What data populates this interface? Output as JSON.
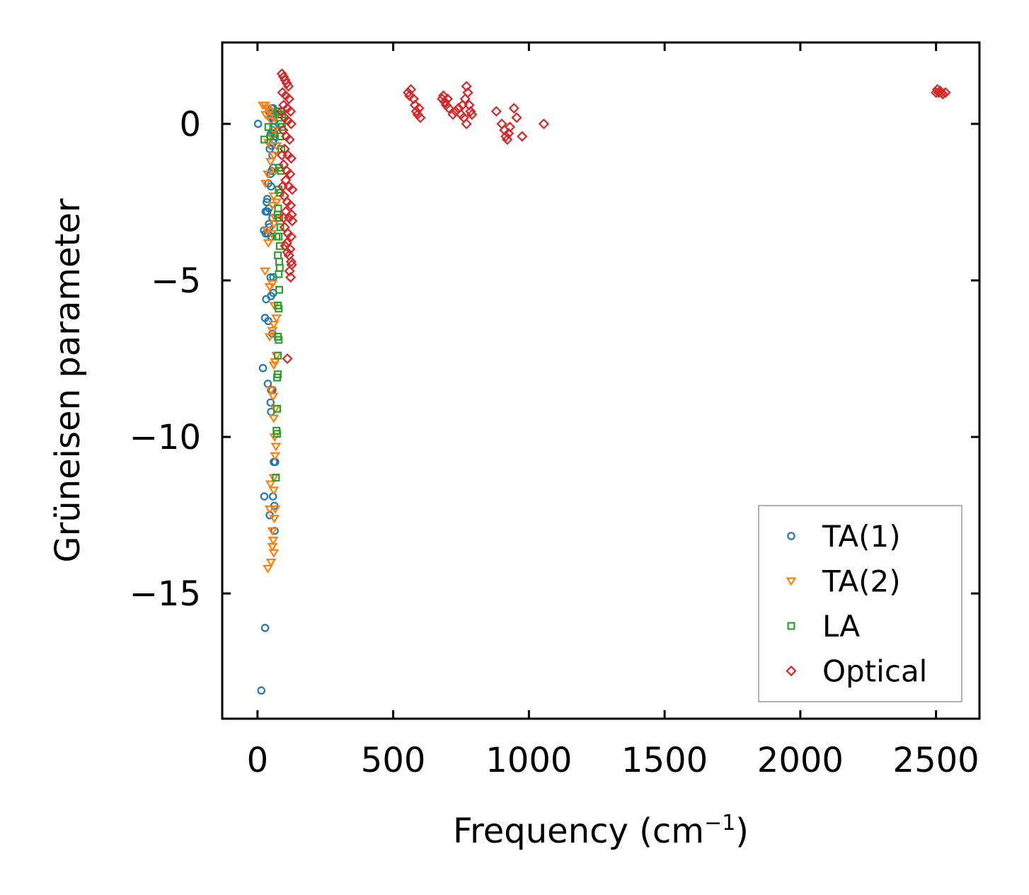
{
  "chart_data": {
    "type": "scatter",
    "title": "",
    "xlabel": "Frequency (cm",
    "xlabel_superscript": "−1",
    "xlabel_suffix": ")",
    "ylabel": "Grüneisen parameter",
    "xlim": [
      -130,
      2660
    ],
    "ylim": [
      -19.0,
      2.6
    ],
    "xticks": [
      0,
      500,
      1000,
      1500,
      2000,
      2500
    ],
    "xtick_labels": [
      "0",
      "500",
      "1000",
      "1500",
      "2000",
      "2500"
    ],
    "yticks": [
      0,
      -5,
      -10,
      -15
    ],
    "ytick_labels": [
      "0",
      "−5",
      "−10",
      "−15"
    ],
    "grid": false,
    "legend_position": "lower-right",
    "series": [
      {
        "name": "TA(1)",
        "marker": "circle",
        "color": "#1f77b4",
        "points": [
          [
            14,
            -18.1
          ],
          [
            28,
            -16.1
          ],
          [
            25,
            -11.9
          ],
          [
            45,
            -12.5
          ],
          [
            57,
            -11.9
          ],
          [
            62,
            -12.2
          ],
          [
            63,
            -13.0
          ],
          [
            60,
            -10.8
          ],
          [
            65,
            -10.8
          ],
          [
            20,
            -7.8
          ],
          [
            38,
            -8.3
          ],
          [
            50,
            -8.5
          ],
          [
            55,
            -8.5
          ],
          [
            48,
            -8.9
          ],
          [
            50,
            -9.2
          ],
          [
            28,
            -6.2
          ],
          [
            40,
            -6.3
          ],
          [
            55,
            -6.7
          ],
          [
            58,
            -5.4
          ],
          [
            32,
            -5.6
          ],
          [
            50,
            -5.5
          ],
          [
            48,
            -4.9
          ],
          [
            58,
            -4.9
          ],
          [
            24,
            -3.4
          ],
          [
            30,
            -3.5
          ],
          [
            38,
            -3.5
          ],
          [
            44,
            -3.3
          ],
          [
            50,
            -3.6
          ],
          [
            55,
            -3.0
          ],
          [
            30,
            -2.8
          ],
          [
            36,
            -2.8
          ],
          [
            42,
            -3.2
          ],
          [
            34,
            -2.5
          ],
          [
            42,
            -2.7
          ],
          [
            36,
            -2.4
          ],
          [
            40,
            -1.9
          ],
          [
            50,
            -2.0
          ],
          [
            48,
            -1.6
          ],
          [
            52,
            -1.5
          ],
          [
            58,
            -1.4
          ],
          [
            55,
            -1.0
          ],
          [
            45,
            -0.8
          ],
          [
            52,
            -0.7
          ],
          [
            58,
            -0.6
          ],
          [
            46,
            -0.4
          ],
          [
            50,
            -0.3
          ],
          [
            54,
            -0.3
          ],
          [
            56,
            -0.2
          ],
          [
            60,
            -0.5
          ],
          [
            62,
            -0.3
          ],
          [
            64,
            -0.4
          ],
          [
            58,
            -0.1
          ],
          [
            48,
            0.2
          ],
          [
            55,
            0.2
          ],
          [
            60,
            0.1
          ],
          [
            42,
            0.4
          ],
          [
            50,
            0.4
          ],
          [
            60,
            0.3
          ],
          [
            52,
            0.5
          ],
          [
            58,
            0.5
          ],
          [
            2,
            0.0
          ]
        ]
      },
      {
        "name": "TA(2)",
        "marker": "triangle-down",
        "color": "#ff7f0e",
        "points": [
          [
            38,
            -14.2
          ],
          [
            50,
            -14.0
          ],
          [
            60,
            -13.7
          ],
          [
            55,
            -13.5
          ],
          [
            58,
            -13.3
          ],
          [
            45,
            -12.3
          ],
          [
            55,
            -13.0
          ],
          [
            62,
            -12.6
          ],
          [
            65,
            -12.3
          ],
          [
            60,
            -11.7
          ],
          [
            48,
            -11.5
          ],
          [
            60,
            -11.3
          ],
          [
            65,
            -10.6
          ],
          [
            68,
            -10.3
          ],
          [
            63,
            -10.0
          ],
          [
            60,
            -9.4
          ],
          [
            65,
            -9.1
          ],
          [
            58,
            -8.7
          ],
          [
            50,
            -8.5
          ],
          [
            60,
            -7.7
          ],
          [
            65,
            -7.6
          ],
          [
            70,
            -7.4
          ],
          [
            45,
            -6.8
          ],
          [
            55,
            -6.6
          ],
          [
            60,
            -6.4
          ],
          [
            70,
            -6.2
          ],
          [
            62,
            -5.8
          ],
          [
            55,
            -5.1
          ],
          [
            45,
            -5.2
          ],
          [
            28,
            -4.7
          ],
          [
            40,
            -3.8
          ],
          [
            52,
            -3.5
          ],
          [
            60,
            -3.2
          ],
          [
            35,
            -3.4
          ],
          [
            65,
            -3.0
          ],
          [
            55,
            -2.6
          ],
          [
            70,
            -2.5
          ],
          [
            60,
            -2.3
          ],
          [
            30,
            -1.9
          ],
          [
            38,
            -1.6
          ],
          [
            48,
            -1.2
          ],
          [
            60,
            -1.0
          ],
          [
            65,
            -1.5
          ],
          [
            40,
            -0.6
          ],
          [
            55,
            -0.4
          ],
          [
            60,
            -0.2
          ],
          [
            30,
            0.3
          ],
          [
            35,
            0.5
          ],
          [
            45,
            0.4
          ],
          [
            20,
            0.6
          ],
          [
            28,
            0.6
          ],
          [
            50,
            0.1
          ],
          [
            65,
            0.2
          ],
          [
            70,
            -0.7
          ]
        ]
      },
      {
        "name": "LA",
        "marker": "square",
        "color": "#2ca02c",
        "points": [
          [
            68,
            -11.3
          ],
          [
            70,
            -9.8
          ],
          [
            72,
            -9.9
          ],
          [
            72,
            -9.1
          ],
          [
            75,
            -8.0
          ],
          [
            72,
            -8.1
          ],
          [
            75,
            -7.4
          ],
          [
            78,
            -6.9
          ],
          [
            75,
            -6.8
          ],
          [
            78,
            -5.9
          ],
          [
            75,
            -5.8
          ],
          [
            80,
            -5.3
          ],
          [
            78,
            -4.8
          ],
          [
            82,
            -4.6
          ],
          [
            80,
            -4.4
          ],
          [
            75,
            -4.2
          ],
          [
            82,
            -3.9
          ],
          [
            78,
            -3.6
          ],
          [
            84,
            -3.3
          ],
          [
            80,
            -3.0
          ],
          [
            76,
            -2.7
          ],
          [
            84,
            -2.2
          ],
          [
            78,
            -2.1
          ],
          [
            86,
            -1.5
          ],
          [
            80,
            -1.4
          ],
          [
            88,
            -0.8
          ],
          [
            84,
            -0.4
          ],
          [
            90,
            -0.1
          ],
          [
            86,
            0.0
          ],
          [
            80,
            0.3
          ],
          [
            75,
            0.4
          ],
          [
            90,
            0.3
          ],
          [
            40,
            -0.1
          ],
          [
            48,
            -0.4
          ],
          [
            25,
            -0.5
          ],
          [
            70,
            -3.6
          ],
          [
            74,
            -2.9
          ]
        ]
      },
      {
        "name": "Optical",
        "marker": "diamond",
        "color": "#d62728",
        "points": [
          [
            90,
            1.6
          ],
          [
            96,
            1.5
          ],
          [
            102,
            1.4
          ],
          [
            108,
            1.3
          ],
          [
            114,
            1.2
          ],
          [
            92,
            1.0
          ],
          [
            104,
            0.9
          ],
          [
            116,
            0.8
          ],
          [
            96,
            0.6
          ],
          [
            110,
            0.5
          ],
          [
            122,
            0.4
          ],
          [
            100,
            0.2
          ],
          [
            112,
            0.1
          ],
          [
            124,
            0.0
          ],
          [
            94,
            -0.2
          ],
          [
            106,
            -0.4
          ],
          [
            118,
            -0.5
          ],
          [
            100,
            -0.8
          ],
          [
            112,
            -1.0
          ],
          [
            124,
            -1.1
          ],
          [
            96,
            -1.3
          ],
          [
            108,
            -1.5
          ],
          [
            120,
            -1.6
          ],
          [
            104,
            -1.8
          ],
          [
            116,
            -2.0
          ],
          [
            128,
            -2.1
          ],
          [
            98,
            -2.3
          ],
          [
            110,
            -2.5
          ],
          [
            122,
            -2.6
          ],
          [
            104,
            -2.8
          ],
          [
            116,
            -3.0
          ],
          [
            128,
            -3.1
          ],
          [
            100,
            -3.3
          ],
          [
            112,
            -3.5
          ],
          [
            124,
            -3.6
          ],
          [
            108,
            -3.8
          ],
          [
            120,
            -4.0
          ],
          [
            116,
            -4.2
          ],
          [
            124,
            -4.4
          ],
          [
            118,
            -4.7
          ],
          [
            122,
            -4.9
          ],
          [
            126,
            -4.5
          ],
          [
            110,
            -4.1
          ],
          [
            102,
            -3.9
          ],
          [
            96,
            -3.0
          ],
          [
            92,
            -2.0
          ],
          [
            90,
            -1.0
          ],
          [
            88,
            0.4
          ],
          [
            110,
            -7.5
          ],
          [
            126,
            -2.9
          ],
          [
            555,
            1.0
          ],
          [
            560,
            0.9
          ],
          [
            565,
            1.1
          ],
          [
            575,
            0.8
          ],
          [
            580,
            0.6
          ],
          [
            585,
            0.4
          ],
          [
            590,
            0.3
          ],
          [
            595,
            0.5
          ],
          [
            600,
            0.2
          ],
          [
            680,
            0.8
          ],
          [
            685,
            0.9
          ],
          [
            690,
            0.7
          ],
          [
            695,
            0.6
          ],
          [
            700,
            0.8
          ],
          [
            705,
            0.5
          ],
          [
            720,
            0.3
          ],
          [
            730,
            0.4
          ],
          [
            740,
            0.5
          ],
          [
            750,
            0.3
          ],
          [
            755,
            0.6
          ],
          [
            760,
            0.2
          ],
          [
            765,
            0.8
          ],
          [
            770,
            1.2
          ],
          [
            775,
            1.0
          ],
          [
            780,
            0.6
          ],
          [
            785,
            0.4
          ],
          [
            790,
            0.3
          ],
          [
            770,
            0.0
          ],
          [
            880,
            0.4
          ],
          [
            900,
            0.0
          ],
          [
            910,
            -0.2
          ],
          [
            915,
            -0.4
          ],
          [
            920,
            -0.5
          ],
          [
            925,
            -0.3
          ],
          [
            930,
            -0.1
          ],
          [
            945,
            0.5
          ],
          [
            955,
            0.2
          ],
          [
            975,
            -0.4
          ],
          [
            1055,
            0.0
          ],
          [
            2500,
            1.0
          ],
          [
            2505,
            1.1
          ],
          [
            2510,
            1.0
          ],
          [
            2515,
            1.05
          ],
          [
            2520,
            1.0
          ],
          [
            2525,
            0.95
          ],
          [
            2535,
            1.0
          ]
        ]
      }
    ]
  }
}
